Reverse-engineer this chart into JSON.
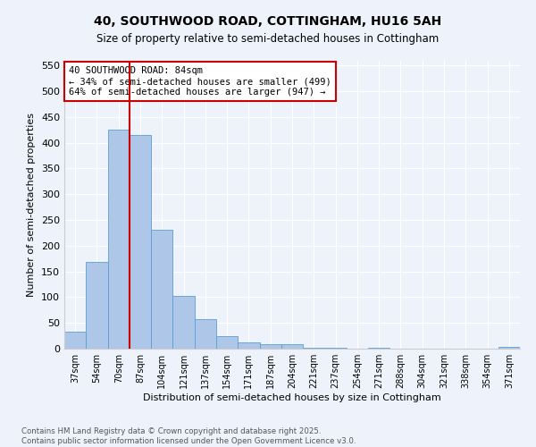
{
  "title1": "40, SOUTHWOOD ROAD, COTTINGHAM, HU16 5AH",
  "title2": "Size of property relative to semi-detached houses in Cottingham",
  "xlabel": "Distribution of semi-detached houses by size in Cottingham",
  "ylabel": "Number of semi-detached properties",
  "categories": [
    "37sqm",
    "54sqm",
    "70sqm",
    "87sqm",
    "104sqm",
    "121sqm",
    "137sqm",
    "154sqm",
    "171sqm",
    "187sqm",
    "204sqm",
    "221sqm",
    "237sqm",
    "254sqm",
    "271sqm",
    "288sqm",
    "304sqm",
    "321sqm",
    "338sqm",
    "354sqm",
    "371sqm"
  ],
  "values": [
    33,
    168,
    425,
    415,
    231,
    102,
    58,
    25,
    12,
    9,
    9,
    2,
    1,
    0,
    1,
    0,
    0,
    0,
    0,
    0,
    4
  ],
  "bar_color": "#aec6e8",
  "bar_edge_color": "#5a9fd4",
  "vline_color": "#cc0000",
  "annotation_title": "40 SOUTHWOOD ROAD: 84sqm",
  "annotation_line2": "← 34% of semi-detached houses are smaller (499)",
  "annotation_line3": "64% of semi-detached houses are larger (947) →",
  "annotation_box_color": "#cc0000",
  "ylim": [
    0,
    560
  ],
  "yticks": [
    0,
    50,
    100,
    150,
    200,
    250,
    300,
    350,
    400,
    450,
    500,
    550
  ],
  "footer1": "Contains HM Land Registry data © Crown copyright and database right 2025.",
  "footer2": "Contains public sector information licensed under the Open Government Licence v3.0.",
  "bg_color": "#edf2fb"
}
